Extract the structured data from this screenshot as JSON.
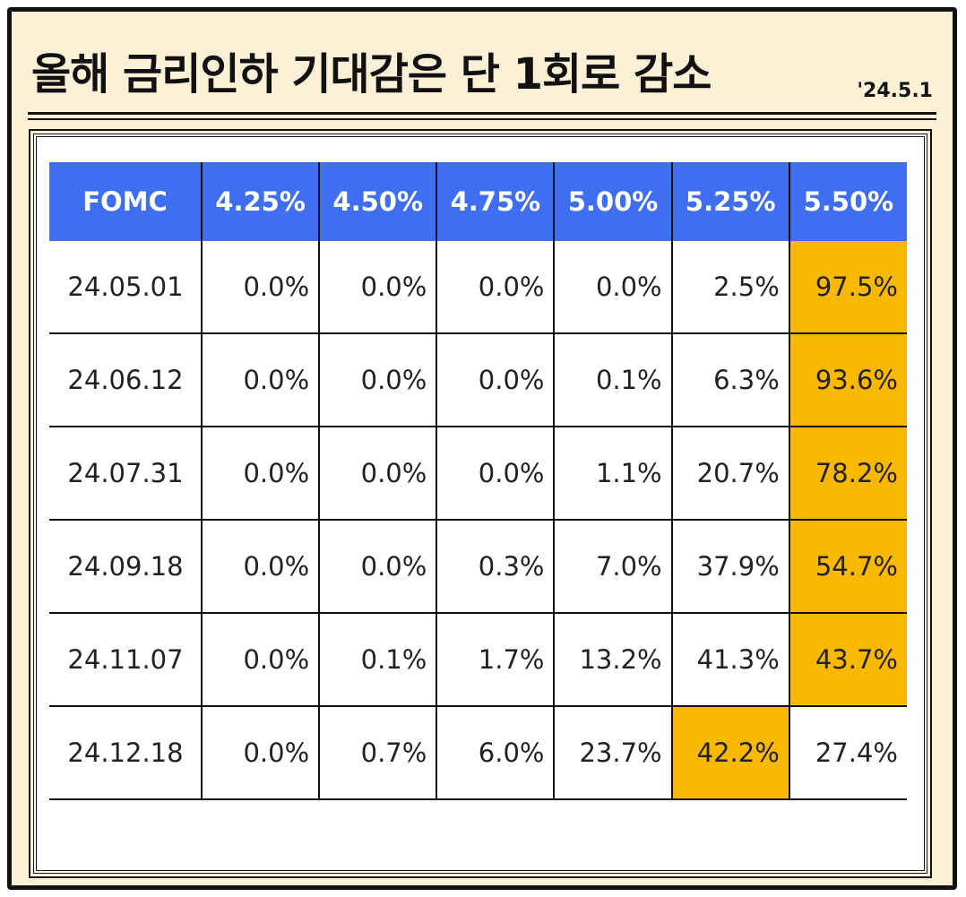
{
  "header": {
    "title": "올해 금리인하 기대감은 단 1회로 감소",
    "date": "'24.5.1"
  },
  "table": {
    "columns": [
      "FOMC",
      "4.25%",
      "4.50%",
      "4.75%",
      "5.00%",
      "5.25%",
      "5.50%"
    ],
    "rows": [
      [
        "24.05.01",
        "0.0%",
        "0.0%",
        "0.0%",
        "0.0%",
        "2.5%",
        "97.5%"
      ],
      [
        "24.06.12",
        "0.0%",
        "0.0%",
        "0.0%",
        "0.1%",
        "6.3%",
        "93.6%"
      ],
      [
        "24.07.31",
        "0.0%",
        "0.0%",
        "0.0%",
        "1.1%",
        "20.7%",
        "78.2%"
      ],
      [
        "24.09.18",
        "0.0%",
        "0.0%",
        "0.3%",
        "7.0%",
        "37.9%",
        "54.7%"
      ],
      [
        "24.11.07",
        "0.0%",
        "0.1%",
        "1.7%",
        "13.2%",
        "41.3%",
        "43.7%"
      ],
      [
        "24.12.18",
        "0.0%",
        "0.7%",
        "6.0%",
        "23.7%",
        "42.2%",
        "27.4%"
      ]
    ]
  }
}
